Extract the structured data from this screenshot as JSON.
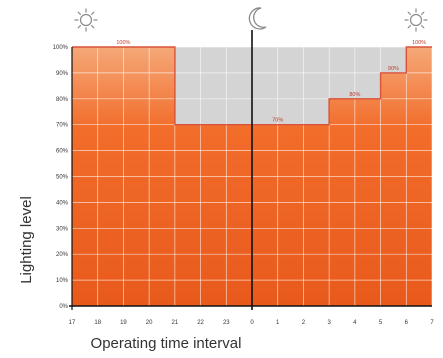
{
  "chart_data": {
    "type": "area",
    "xlabel": "Operating time interval",
    "ylabel": "Lighting level",
    "x_ticks": [
      "17",
      "18",
      "19",
      "20",
      "21",
      "22",
      "23",
      "0",
      "1",
      "2",
      "3",
      "4",
      "5",
      "6",
      "7"
    ],
    "y_ticks": [
      "0%",
      "10%",
      "20%",
      "30%",
      "40%",
      "50%",
      "60%",
      "70%",
      "80%",
      "90%",
      "100%"
    ],
    "ylim": [
      0,
      100
    ],
    "grid": true,
    "series": [
      {
        "values": [
          {
            "from": "17",
            "to": "21",
            "level": 100
          },
          {
            "from": "21",
            "to": "3",
            "level": 70
          },
          {
            "from": "3",
            "to": "5",
            "level": 80
          },
          {
            "from": "5",
            "to": "6",
            "level": 90
          },
          {
            "from": "6",
            "to": "7",
            "level": 100
          }
        ]
      }
    ],
    "data_labels": [
      {
        "text": "100%",
        "at": "19"
      },
      {
        "text": "70%",
        "at": "1"
      },
      {
        "text": "80%",
        "at": "4"
      },
      {
        "text": "90%",
        "at": "5.5"
      },
      {
        "text": "100%",
        "at": "6.5"
      }
    ],
    "divider_at": "0",
    "icons": [
      "sun-icon",
      "moon-icon",
      "sun-icon"
    ],
    "colors": {
      "fill_top": "#f5a878",
      "fill_mid": "#f26c2a",
      "fill_bottom": "#e85a1c",
      "shortfall": "#d4d4d4",
      "line": "#d9533a",
      "axis": "#111111"
    }
  }
}
